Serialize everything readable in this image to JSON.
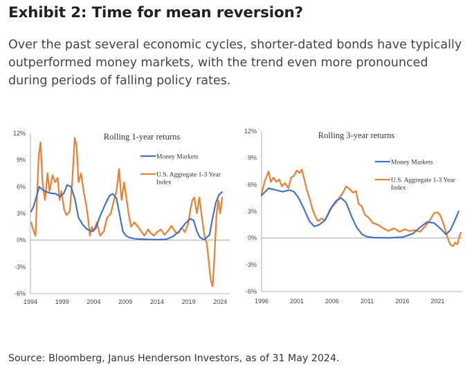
{
  "header": {
    "title": "Exhibit 2: Time for mean reversion?",
    "subtitle": "Over the past several economic cycles, shorter-dated bonds have typically outperformed money markets, with the trend even more pronounced during periods of falling policy rates."
  },
  "footer": {
    "source": "Source: Bloomberg, Janus Henderson Investors, as of 31 May 2024."
  },
  "colors": {
    "money_markets": "#4472C4",
    "aggregate": "#ED7D31",
    "axis": "#9a9a9a"
  },
  "chart_data": [
    {
      "type": "line",
      "title": "Rolling 1-year returns",
      "xlabel": "",
      "ylabel": "",
      "xlim": [
        1994,
        2025.5
      ],
      "ylim": [
        -6,
        12
      ],
      "y_ticks": [
        -6,
        -3,
        0,
        3,
        6,
        9,
        12
      ],
      "y_tick_labels": [
        "-6%",
        "-3%",
        "0%",
        "3%",
        "6%",
        "9%",
        "12%"
      ],
      "x_ticks": [
        1994,
        1999,
        2004,
        2009,
        2014,
        2019,
        2024
      ],
      "x_tick_labels": [
        "1994",
        "1999",
        "2004",
        "2009",
        "2014",
        "2019",
        "2024"
      ],
      "legend_position": "top-right",
      "series": [
        {
          "name": "Money Markets",
          "x": [
            1994.1,
            1994.5,
            1995,
            1995.4,
            1996,
            1997,
            1998,
            1998.7,
            1999.3,
            1999.8,
            2000.4,
            2001,
            2001.6,
            2002.3,
            2003,
            2003.7,
            2004.3,
            2005,
            2005.8,
            2006.5,
            2007,
            2007.6,
            2008.2,
            2008.6,
            2009.1,
            2009.6,
            2010.5,
            2012,
            2014,
            2015.5,
            2016.5,
            2017.5,
            2018.5,
            2019.3,
            2019.8,
            2020.3,
            2020.8,
            2021.5,
            2022.3,
            2022.8,
            2023.3,
            2023.8,
            2024.3
          ],
          "y": [
            3.2,
            3.8,
            5.0,
            6.0,
            5.6,
            5.3,
            5.2,
            4.9,
            5.3,
            6.2,
            6.0,
            4.7,
            2.5,
            1.7,
            1.2,
            1.0,
            1.3,
            2.7,
            4.0,
            5.0,
            5.2,
            4.7,
            2.5,
            1.0,
            0.5,
            0.3,
            0.15,
            0.1,
            0.05,
            0.1,
            0.4,
            1.0,
            1.9,
            2.4,
            2.2,
            1.0,
            0.3,
            0.05,
            0.6,
            2.5,
            4.2,
            5.1,
            5.4
          ]
        },
        {
          "name": "U.S. Aggregate 1-3 Year Index",
          "x": [
            1994.1,
            1994.5,
            1994.8,
            1995.3,
            1995.6,
            1995.9,
            1996.3,
            1996.7,
            1997,
            1997.5,
            1997.9,
            1998.3,
            1998.6,
            1998.9,
            1999.3,
            1999.7,
            2000.2,
            2000.6,
            2001,
            2001.3,
            2001.6,
            2002,
            2002.4,
            2002.8,
            2003.1,
            2003.4,
            2003.7,
            2004,
            2004.5,
            2005,
            2005.6,
            2006.1,
            2006.7,
            2007.2,
            2007.6,
            2008,
            2008.4,
            2008.8,
            2009.1,
            2009.5,
            2009.9,
            2010.4,
            2011,
            2011.5,
            2012,
            2012.6,
            2013,
            2013.5,
            2014,
            2014.6,
            2015.2,
            2015.8,
            2016.3,
            2016.9,
            2017.4,
            2017.9,
            2018.4,
            2018.9,
            2019.3,
            2019.6,
            2019.9,
            2020.3,
            2020.7,
            2021.1,
            2021.5,
            2021.9,
            2022.2,
            2022.5,
            2022.8,
            2023.1,
            2023.4,
            2023.7,
            2024.0,
            2024.3
          ],
          "y": [
            2.0,
            1.0,
            0.5,
            9.5,
            11.0,
            6.5,
            4.5,
            7.5,
            5.5,
            7.3,
            6.5,
            7.0,
            4.5,
            5.5,
            3.5,
            2.8,
            3.2,
            6.5,
            11.5,
            10.5,
            6.5,
            7.5,
            5.5,
            4.0,
            2.5,
            0.5,
            1.5,
            1.0,
            2.0,
            0.5,
            1.0,
            2.5,
            3.0,
            4.5,
            5.5,
            8.0,
            4.5,
            6.5,
            5.0,
            3.0,
            1.5,
            2.0,
            1.5,
            1.0,
            0.5,
            1.2,
            0.8,
            0.5,
            0.9,
            1.2,
            0.6,
            1.1,
            1.6,
            0.9,
            0.8,
            1.4,
            0.9,
            1.8,
            3.5,
            4.5,
            4.8,
            3.0,
            4.8,
            2.5,
            0.5,
            -0.5,
            -2.5,
            -4.5,
            -5.2,
            -1.5,
            2.8,
            4.5,
            3.0,
            4.8
          ]
        }
      ]
    },
    {
      "type": "line",
      "title": "Rolling 3-year returns",
      "xlabel": "",
      "ylabel": "",
      "xlim": [
        1996,
        2024.5
      ],
      "ylim": [
        -6,
        12
      ],
      "y_ticks": [
        -6,
        -3,
        0,
        3,
        6,
        9,
        12
      ],
      "y_tick_labels": [
        "-6%",
        "-3%",
        "0%",
        "3%",
        "6%",
        "9%",
        "12%"
      ],
      "x_ticks": [
        1996,
        2001,
        2006,
        2011,
        2016,
        2021
      ],
      "x_tick_labels": [
        "1996",
        "2001",
        "2006",
        "2011",
        "2016",
        "2021"
      ],
      "legend_position": "top-right",
      "series": [
        {
          "name": "Money Markets",
          "x": [
            1996,
            1997,
            1998,
            1999,
            2000,
            2000.6,
            2001.2,
            2002,
            2002.8,
            2003.5,
            2004.2,
            2005,
            2005.8,
            2006.6,
            2007.3,
            2008,
            2008.8,
            2009.5,
            2010.3,
            2011,
            2012,
            2014,
            2016,
            2017.5,
            2018.5,
            2019.5,
            2020.5,
            2021.5,
            2022.2,
            2022.8,
            2023.4,
            2024
          ],
          "y": [
            4.8,
            5.6,
            5.4,
            5.2,
            5.4,
            5.2,
            4.6,
            3.3,
            1.9,
            1.3,
            1.5,
            2.0,
            3.3,
            4.2,
            4.5,
            4.0,
            2.4,
            1.2,
            0.4,
            0.15,
            0.05,
            0.02,
            0.1,
            0.5,
            1.2,
            1.8,
            1.7,
            1.0,
            0.4,
            0.9,
            1.9,
            3.0
          ]
        },
        {
          "name": "U.S. Aggregate 1-3 Year Index",
          "x": [
            1996,
            1996.5,
            1997,
            1997.3,
            1997.7,
            1998.1,
            1998.5,
            1998.9,
            1999.3,
            1999.8,
            2000.2,
            2000.6,
            2001,
            2001.4,
            2001.7,
            2002.1,
            2002.4,
            2002.8,
            2003.2,
            2003.6,
            2004,
            2004.5,
            2005,
            2005.5,
            2006,
            2006.6,
            2007,
            2007.5,
            2008,
            2008.5,
            2009,
            2009.4,
            2009.8,
            2010.2,
            2010.7,
            2011.2,
            2011.8,
            2012.5,
            2013.3,
            2014,
            2014.8,
            2015.6,
            2016.3,
            2017,
            2017.8,
            2018.5,
            2019.2,
            2019.9,
            2020.5,
            2021,
            2021.4,
            2021.8,
            2022.2,
            2022.6,
            2022.9,
            2023.2,
            2023.5,
            2023.8,
            2024.1,
            2024.3
          ],
          "y": [
            5.0,
            6.5,
            7.5,
            6.3,
            6.8,
            6.3,
            6.6,
            5.8,
            6.2,
            5.6,
            6.8,
            7.0,
            7.6,
            7.3,
            7.7,
            6.5,
            5.5,
            4.5,
            3.3,
            2.5,
            1.9,
            2.2,
            2.0,
            2.7,
            3.5,
            4.0,
            4.5,
            5.0,
            5.8,
            5.5,
            5.1,
            5.3,
            3.8,
            3.6,
            2.6,
            2.3,
            1.7,
            1.5,
            1.1,
            0.8,
            1.1,
            0.7,
            1.0,
            0.8,
            0.9,
            0.7,
            1.3,
            2.0,
            2.8,
            2.9,
            2.5,
            1.7,
            0.6,
            -0.4,
            -0.8,
            -0.9,
            -0.5,
            -0.7,
            0.2,
            0.6
          ]
        }
      ]
    }
  ]
}
